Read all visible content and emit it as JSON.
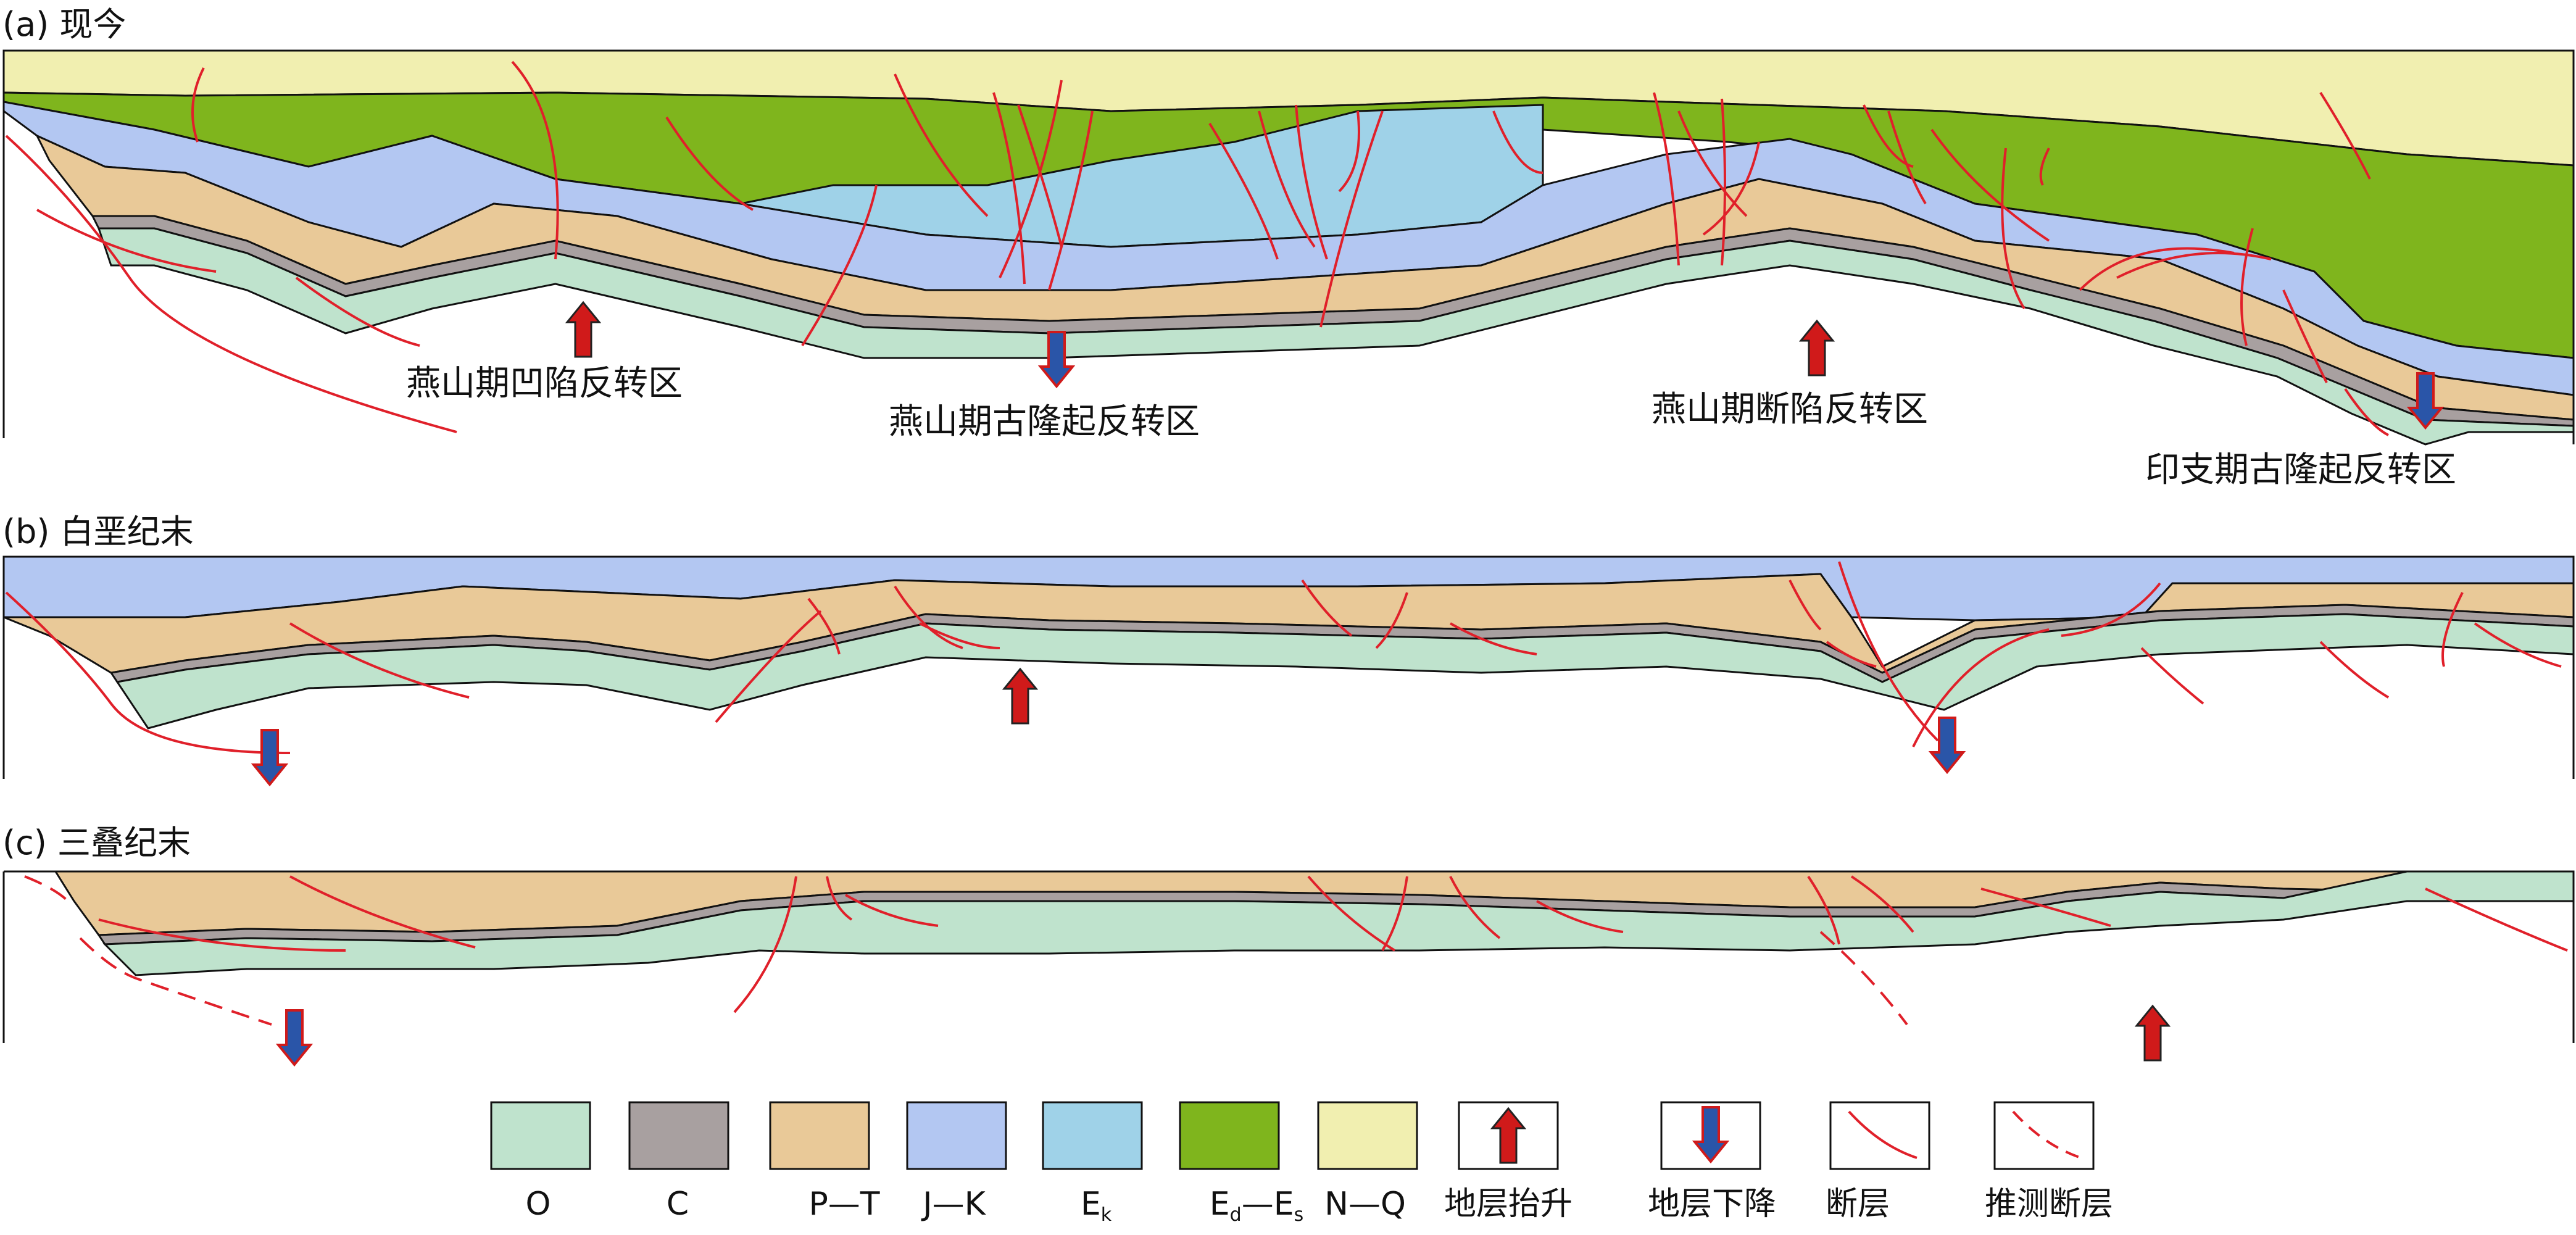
{
  "panels": [
    {
      "title": "(a) 现今",
      "zones": [
        "燕山期凹陷反转区",
        "燕山期古隆起反转区",
        "燕山期断陷反转区",
        "印支期古隆起反转区"
      ]
    },
    {
      "title": "(b) 白垩纪末"
    },
    {
      "title": "(c) 三叠纪末"
    }
  ],
  "colors": {
    "O": "#bfe3cd",
    "C": "#a8a0a0",
    "PT": "#e9c998",
    "JK": "#b3c7f2",
    "Ek": "#9fd2e8",
    "EdEs": "#7fb51d",
    "NQ": "#f1efb0",
    "fault": "#e0202a",
    "arrow_up": "#d01a1a",
    "arrow_down": "#2a55a8"
  },
  "legend": [
    {
      "key": "O",
      "label": "O",
      "type": "fill"
    },
    {
      "key": "C",
      "label": "C",
      "type": "fill"
    },
    {
      "key": "PT",
      "label": "P—T",
      "type": "fill"
    },
    {
      "key": "JK",
      "label": "J—K",
      "type": "fill"
    },
    {
      "key": "Ek",
      "label": "E",
      "sub": "k",
      "type": "fill"
    },
    {
      "key": "EdEs",
      "label": "E",
      "sub": "d",
      "label2": "—E",
      "sub2": "s",
      "type": "fill"
    },
    {
      "key": "NQ",
      "label": "N—Q",
      "type": "fill"
    },
    {
      "key": "up",
      "label": "地层抬升",
      "type": "arrow-up"
    },
    {
      "key": "down",
      "label": "地层下降",
      "type": "arrow-down"
    },
    {
      "key": "fault",
      "label": "断层",
      "type": "fault"
    },
    {
      "key": "inferred",
      "label": "推测断层",
      "type": "fault-dashed"
    }
  ]
}
